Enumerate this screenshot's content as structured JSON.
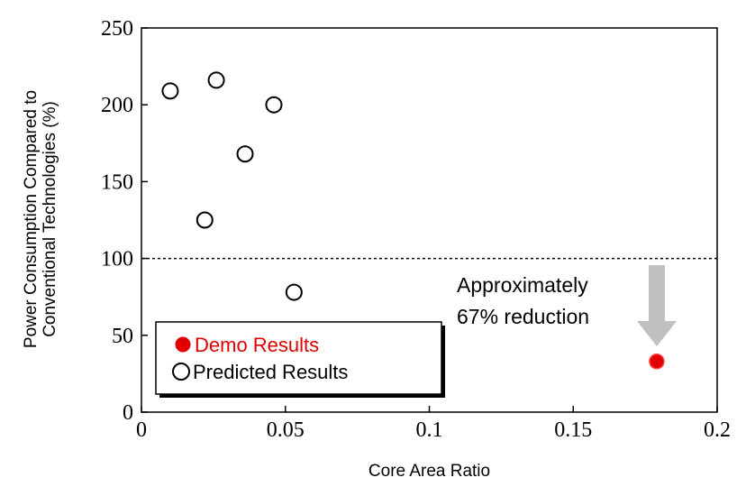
{
  "chart_data": {
    "type": "scatter",
    "xlabel": "Core Area Ratio",
    "ylabel_lines": [
      "Power Consumption Compared to",
      "Conventional Technologies (%)"
    ],
    "xlim": [
      0,
      0.2
    ],
    "ylim": [
      0,
      250
    ],
    "x_ticks": [
      0,
      0.05,
      0.1,
      0.15,
      0.2
    ],
    "x_tick_labels": [
      "0",
      "0.05",
      "0.1",
      "0.15",
      "0.2"
    ],
    "y_ticks": [
      0,
      50,
      100,
      150,
      200,
      250
    ],
    "y_tick_labels": [
      "0",
      "50",
      "100",
      "150",
      "200",
      "250"
    ],
    "grid": false,
    "reference_line": {
      "y": 100,
      "style": "dotted"
    },
    "series": [
      {
        "name": "Demo Results",
        "marker": "filled-circle",
        "color": "#e00000",
        "points": [
          {
            "x": 0.179,
            "y": 33
          }
        ]
      },
      {
        "name": "Predicted Results",
        "marker": "open-circle",
        "color": "#000000",
        "points": [
          {
            "x": 0.01,
            "y": 209
          },
          {
            "x": 0.026,
            "y": 216
          },
          {
            "x": 0.046,
            "y": 200
          },
          {
            "x": 0.036,
            "y": 168
          },
          {
            "x": 0.022,
            "y": 125
          },
          {
            "x": 0.053,
            "y": 78
          }
        ]
      }
    ],
    "annotation": {
      "lines": [
        "Approximately",
        "67% reduction"
      ],
      "arrow_color": "#c0c0c0"
    },
    "legend": {
      "placement": "bottom-left"
    }
  }
}
